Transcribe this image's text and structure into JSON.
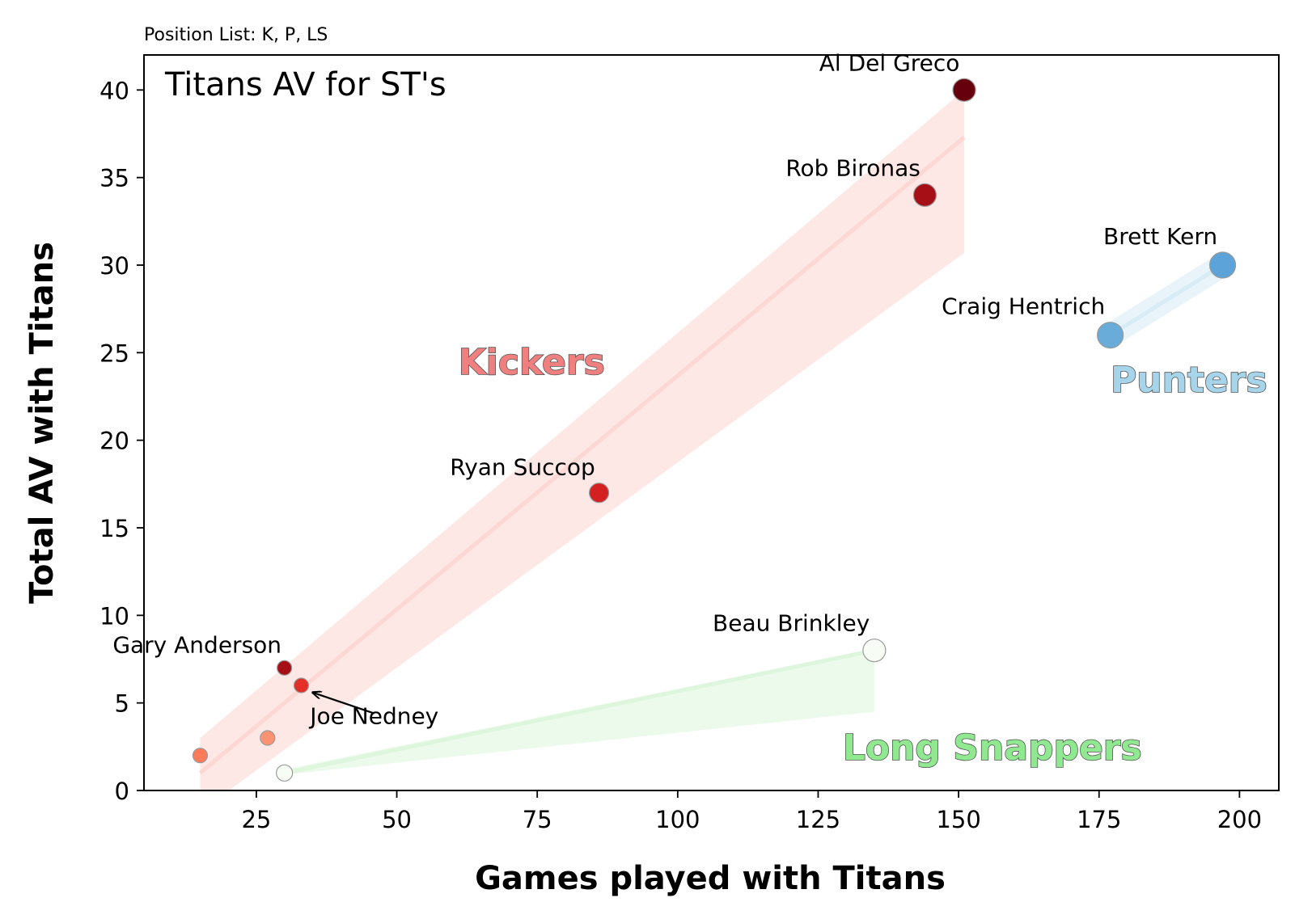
{
  "chart_data": {
    "type": "scatter",
    "top_note": "Position List: K, P, LS",
    "title": "Titans AV for ST's",
    "xlabel": "Games played with Titans",
    "ylabel": "Total AV with Titans",
    "xlim": [
      5,
      207
    ],
    "ylim": [
      0,
      42
    ],
    "xticks": [
      25,
      50,
      75,
      100,
      125,
      150,
      175,
      200
    ],
    "yticks": [
      0,
      5,
      10,
      15,
      20,
      25,
      30,
      35,
      40
    ],
    "grid": false,
    "groups": [
      {
        "name": "Kickers",
        "color": "#f08080",
        "band_color": "#fcd5d0",
        "label_pos": [
          74,
          24.5
        ],
        "fit": {
          "x0": 15,
          "x1": 151,
          "y0": 1.0,
          "y1": 37.3
        },
        "band": {
          "x0": 15,
          "x1": 151,
          "lower0": -1.2,
          "upper0": 3.0,
          "lower1": 30.7,
          "upper1": 40.0
        },
        "points": [
          {
            "name": "Al Del Greco",
            "x": 151,
            "y": 40,
            "color": "#67000d",
            "r": 14
          },
          {
            "name": "Rob Bironas",
            "x": 144,
            "y": 34,
            "color": "#a50f15",
            "r": 14
          },
          {
            "name": "Ryan Succop",
            "x": 86,
            "y": 17,
            "color": "#d42020",
            "r": 12
          },
          {
            "name": "Gary Anderson",
            "x": 30,
            "y": 7,
            "color": "#a50f15",
            "r": 9
          },
          {
            "name": "Joe Nedney",
            "x": 33,
            "y": 6,
            "color": "#e32f27",
            "r": 9,
            "annotate_at": [
              35,
              5.6
            ],
            "text_at": [
              46,
              4.4
            ]
          },
          {
            "name": "",
            "x": 27,
            "y": 3,
            "color": "#fc9272",
            "r": 9
          },
          {
            "name": "",
            "x": 15,
            "y": 2,
            "color": "#fb7a5a",
            "r": 9
          }
        ]
      },
      {
        "name": "Punters",
        "color": "#a6d4ea",
        "band_color": "#d6ebf5",
        "label_pos": [
          191,
          23.5
        ],
        "fit": {
          "x0": 177,
          "x1": 197,
          "y0": 26.0,
          "y1": 30.0
        },
        "band": {
          "x0": 177,
          "x1": 197,
          "lower0": 25.2,
          "upper0": 26.8,
          "lower1": 29.2,
          "upper1": 30.8
        },
        "points": [
          {
            "name": "Brett Kern",
            "x": 197,
            "y": 30,
            "color": "#5ba3d9",
            "r": 16
          },
          {
            "name": "Craig Hentrich",
            "x": 177,
            "y": 26,
            "color": "#69acda",
            "r": 16
          }
        ]
      },
      {
        "name": "Long Snappers",
        "color": "#90e890",
        "band_color": "#dcf5dc",
        "label_pos": [
          156,
          2.5
        ],
        "fit": {
          "x0": 30,
          "x1": 135,
          "y0": 1.0,
          "y1": 8.0
        },
        "band": {
          "x0": 30,
          "x1": 135,
          "lower0": 0.9,
          "upper0": 1.2,
          "lower1": 4.5,
          "upper1": 8.1
        },
        "points": [
          {
            "name": "Beau Brinkley",
            "x": 135,
            "y": 8,
            "color": "#f7fcf5",
            "r": 14
          },
          {
            "name": "",
            "x": 30,
            "y": 1,
            "color": "#f7fcf5",
            "r": 10
          }
        ]
      }
    ]
  }
}
